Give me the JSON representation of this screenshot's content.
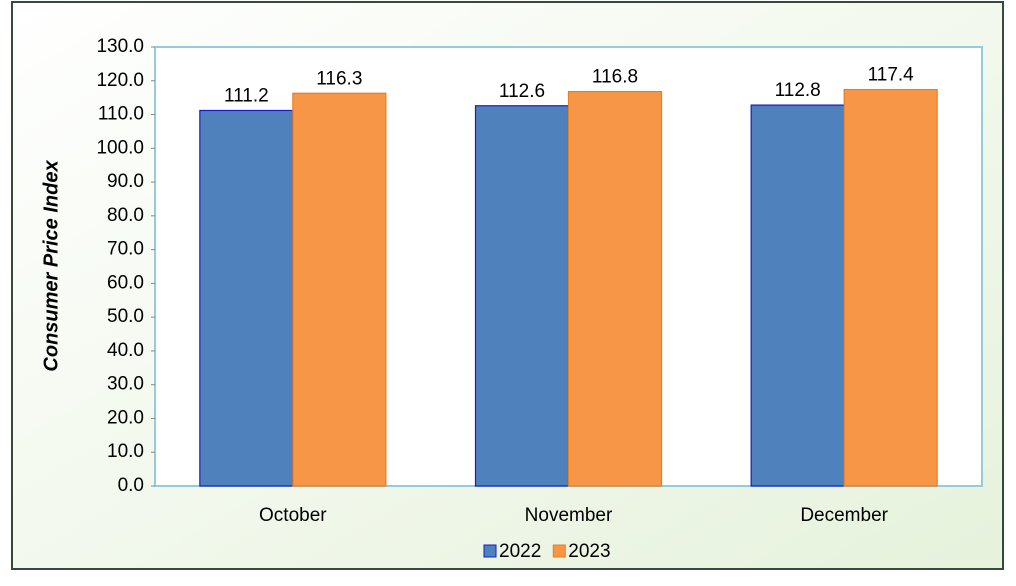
{
  "chart_data": {
    "type": "bar",
    "y_label": "Consumer Price Index",
    "categories": [
      "October",
      "November",
      "December"
    ],
    "series": [
      {
        "name": "2022",
        "color": "#4f81bd",
        "values": [
          111.2,
          112.6,
          112.8
        ]
      },
      {
        "name": "2023",
        "color": "#f79646",
        "values": [
          116.3,
          116.8,
          117.4
        ]
      }
    ],
    "ylim": [
      0,
      130
    ],
    "yticks": [
      {
        "value": 0,
        "label": "0.0"
      },
      {
        "value": 10,
        "label": "10.0"
      },
      {
        "value": 20,
        "label": "20.0"
      },
      {
        "value": 30,
        "label": "30.0"
      },
      {
        "value": 40,
        "label": "40.0"
      },
      {
        "value": 50,
        "label": "50.0"
      },
      {
        "value": 60,
        "label": "60.0"
      },
      {
        "value": 70,
        "label": "70.0"
      },
      {
        "value": 80,
        "label": "80.0"
      },
      {
        "value": 90,
        "label": "90.0"
      },
      {
        "value": 100,
        "label": "100.0"
      },
      {
        "value": 110,
        "label": "110.0"
      },
      {
        "value": 120,
        "label": "120.0"
      },
      {
        "value": 130,
        "label": "130.0"
      }
    ],
    "grid": false,
    "legend": "bottom"
  }
}
